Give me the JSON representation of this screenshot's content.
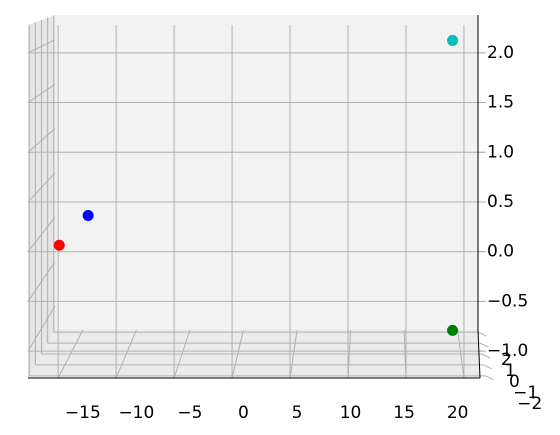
{
  "chart_data": {
    "type": "scatter3d",
    "x": [
      -15,
      -12.5,
      19.5,
      19.5
    ],
    "y": [
      -2,
      -2,
      2,
      2
    ],
    "z": [
      0.05,
      0.35,
      2.0,
      -1.25
    ],
    "colors": [
      "#ff0000",
      "#0000ff",
      "#00bfbf",
      "#008000"
    ],
    "xlim": [
      -17.6,
      21.9
    ],
    "ylim": [
      -2.2,
      2.2
    ],
    "zlim": [
      -1.27,
      2.28
    ],
    "xticks": [
      {
        "value": -15,
        "label": "−15"
      },
      {
        "value": -10,
        "label": "−10"
      },
      {
        "value": -5,
        "label": "−5"
      },
      0,
      5,
      10,
      15,
      20
    ],
    "yticks": [
      {
        "value": -2,
        "label": "−2"
      },
      {
        "value": -1,
        "label": "−1"
      },
      0,
      1,
      2
    ],
    "zticks": [
      {
        "value": -1,
        "label": "−1.0"
      },
      {
        "value": -0.5,
        "label": "−0.5"
      },
      {
        "value": 0,
        "label": "0.0"
      },
      {
        "value": 0.5,
        "label": "0.5"
      },
      {
        "value": 1,
        "label": "1.0"
      },
      {
        "value": 1.5,
        "label": "1.5"
      },
      {
        "value": 2,
        "label": "2.0"
      }
    ],
    "grid": true
  }
}
